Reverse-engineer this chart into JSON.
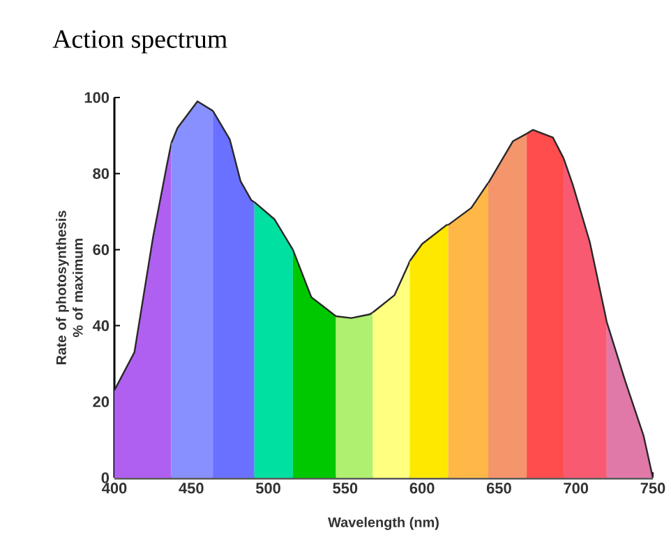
{
  "chart_data": {
    "type": "area",
    "title": "Action spectrum",
    "xlabel": "Wavelength (nm)",
    "ylabel": "Rate of photosynthesis % of maximum",
    "xlim": [
      400,
      750
    ],
    "xticks": [
      400,
      450,
      500,
      550,
      600,
      650,
      700,
      750
    ],
    "ylim": [
      0,
      100
    ],
    "yticks": [
      0,
      20,
      40,
      60,
      80,
      100
    ],
    "series": [
      {
        "color": "#b060f0",
        "x": [
          400,
          413,
          425,
          434,
          437
        ],
        "values": [
          23,
          33,
          63,
          82,
          88
        ]
      },
      {
        "color": "#8890ff",
        "x": [
          437,
          441,
          454,
          464
        ],
        "values": [
          88,
          92,
          99,
          96.5
        ]
      },
      {
        "color": "#6a70ff",
        "x": [
          464,
          475,
          482,
          489,
          491
        ],
        "values": [
          96.5,
          89,
          78,
          73,
          72.5
        ]
      },
      {
        "color": "#00e0a0",
        "x": [
          491,
          504,
          516
        ],
        "values": [
          72.5,
          68,
          60
        ]
      },
      {
        "color": "#00c800",
        "x": [
          516,
          528,
          544
        ],
        "values": [
          60,
          47.5,
          42.5
        ]
      },
      {
        "color": "#b0f070",
        "x": [
          544,
          554,
          566,
          568
        ],
        "values": [
          42.5,
          42,
          43,
          43.5
        ]
      },
      {
        "color": "#ffff80",
        "x": [
          568,
          582,
          591,
          592
        ],
        "values": [
          43.5,
          48,
          56,
          57
        ]
      },
      {
        "color": "#ffe800",
        "x": [
          592,
          600,
          616,
          617
        ],
        "values": [
          57,
          61.5,
          66.5,
          66.5
        ]
      },
      {
        "color": "#ffb848",
        "x": [
          617,
          632,
          642,
          643
        ],
        "values": [
          66.5,
          71,
          77,
          77.5
        ]
      },
      {
        "color": "#f4956c",
        "x": [
          643,
          659,
          668
        ],
        "values": [
          77.5,
          88.5,
          90.5
        ]
      },
      {
        "color": "#ff4c4c",
        "x": [
          668,
          672,
          685,
          692
        ],
        "values": [
          90.5,
          91.5,
          89.5,
          84
        ]
      },
      {
        "color": "#f85a72",
        "x": [
          692,
          698,
          709,
          719,
          720
        ],
        "values": [
          84,
          77,
          62,
          43,
          41
        ]
      },
      {
        "color": "#e078a8",
        "x": [
          720,
          732,
          744,
          750
        ],
        "values": [
          41,
          25.5,
          11,
          0
        ]
      }
    ]
  }
}
